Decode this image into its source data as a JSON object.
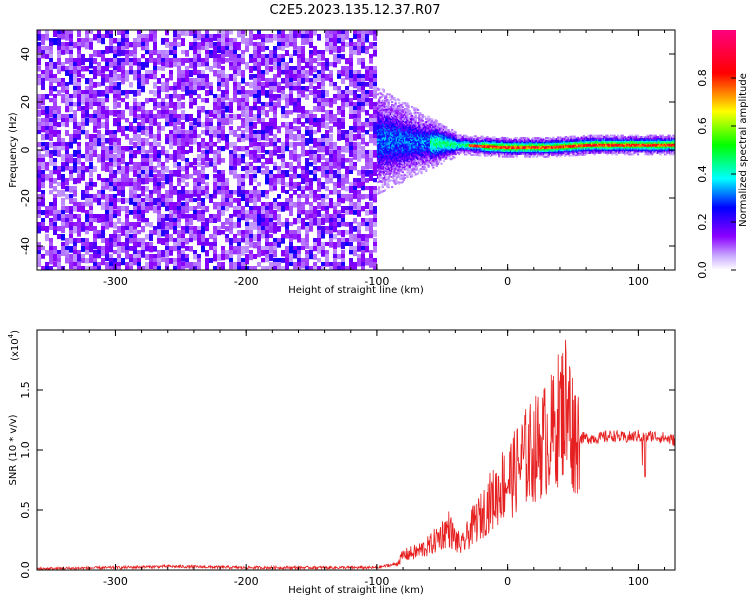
{
  "title": "C2E5.2023.135.12.37.R07",
  "chart_data": [
    {
      "type": "heatmap",
      "xlabel": "Height of straight line (km)",
      "ylabel": "Frequency (Hz)",
      "xlim": [
        -360,
        128
      ],
      "ylim": [
        -50,
        50
      ],
      "xticks": [
        -300,
        -200,
        -100,
        0,
        100
      ],
      "yticks": [
        -40,
        -20,
        0,
        20,
        40
      ],
      "noise_region": {
        "x": [
          -360,
          -100
        ],
        "frequency": [
          -50,
          50
        ]
      },
      "signal_track": {
        "x": [
          -100,
          128
        ],
        "center_frequency": [
          4,
          3,
          2,
          1,
          1,
          2,
          2,
          2
        ]
      },
      "grid": false
    },
    {
      "type": "colorbar",
      "label": "Normalized spectral amplitude",
      "range": [
        0.0,
        1.0
      ],
      "ticks": [
        0.0,
        0.2,
        0.4,
        0.6,
        0.8
      ],
      "colormap": [
        "#ffffff",
        "#8b00ff",
        "#0000ff",
        "#00ffff",
        "#00ff00",
        "#ffff00",
        "#ff0000",
        "#ff0080"
      ]
    },
    {
      "type": "line",
      "xlabel": "Height of straight line (km)",
      "ylabel": "SNR (10 * v/v)",
      "y_multiplier": "(x10",
      "y_multiplier_exp": "4",
      "xlim": [
        -360,
        128
      ],
      "ylim": [
        0,
        2.0
      ],
      "xticks": [
        -300,
        -200,
        -100,
        0,
        100
      ],
      "yticks": [
        0.0,
        0.5,
        1.0,
        1.5
      ],
      "color": "#e62020",
      "series": [
        {
          "x": [
            -360,
            -300,
            -260,
            -200,
            -150,
            -100,
            -85,
            -80,
            -70,
            -60,
            -50,
            -45,
            -40,
            -35,
            -30,
            -25,
            -20,
            -15,
            -10,
            -5,
            0,
            5,
            10,
            15,
            20,
            25,
            30,
            35,
            40,
            45,
            50,
            55,
            60,
            70,
            80,
            90,
            100,
            105,
            110,
            120,
            128
          ],
          "y": [
            0.01,
            0.02,
            0.03,
            0.02,
            0.02,
            0.02,
            0.05,
            0.12,
            0.15,
            0.2,
            0.3,
            0.35,
            0.25,
            0.2,
            0.3,
            0.4,
            0.45,
            0.55,
            0.6,
            0.7,
            0.75,
            0.8,
            0.9,
            0.95,
            1.0,
            1.05,
            1.1,
            1.15,
            1.3,
            1.4,
            1.15,
            1.1,
            1.1,
            1.1,
            1.12,
            1.1,
            1.12,
            1.1,
            1.12,
            1.1,
            1.08
          ]
        }
      ]
    }
  ]
}
